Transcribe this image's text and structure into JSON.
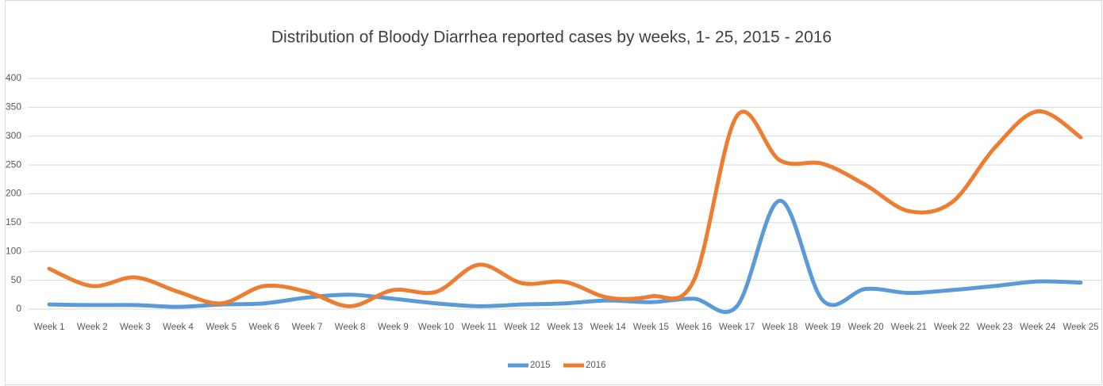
{
  "chart_data": {
    "type": "line",
    "title": "Distribution of Bloody Diarrhea reported cases by weeks, 1- 25, 2015 - 2016",
    "categories": [
      "Week 1",
      "Week 2",
      "Week 3",
      "Week 4",
      "Week 5",
      "Week 6",
      "Week 7",
      "Week 8",
      "Week 9",
      "Week 10",
      "Week 11",
      "Week 12",
      "Week 13",
      "Week 14",
      "Week 15",
      "Week 16",
      "Week 17",
      "Week 18",
      "Week 19",
      "Week 20",
      "Week 21",
      "Week 22",
      "Week 23",
      "Week 24",
      "Week 25"
    ],
    "series": [
      {
        "name": "2015",
        "color": "#5b9bd5",
        "values": [
          8,
          7,
          7,
          4,
          8,
          10,
          20,
          25,
          18,
          10,
          5,
          8,
          10,
          15,
          12,
          18,
          5,
          188,
          15,
          35,
          28,
          33,
          40,
          48,
          46
        ]
      },
      {
        "name": "2016",
        "color": "#ed7d31",
        "values": [
          70,
          40,
          55,
          30,
          10,
          40,
          30,
          5,
          33,
          30,
          77,
          45,
          47,
          20,
          22,
          50,
          335,
          258,
          252,
          215,
          170,
          185,
          280,
          343,
          298
        ]
      }
    ],
    "ylim": [
      0,
      400
    ],
    "yticks": [
      0,
      50,
      100,
      150,
      200,
      250,
      300,
      350,
      400
    ],
    "grid": true,
    "legend": "bottom"
  }
}
